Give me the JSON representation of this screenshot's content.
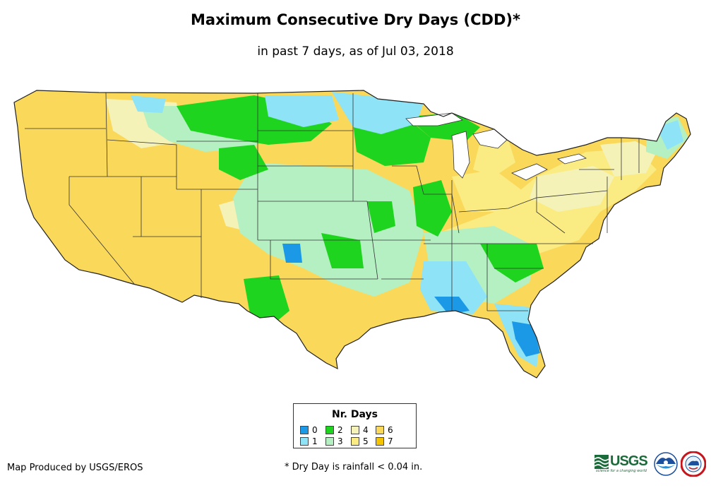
{
  "map": {
    "title": "Maximum Consecutive Dry Days (CDD)*",
    "subtitle": "in past 7 days, as of Jul 03, 2018"
  },
  "legend": {
    "title": "Nr. Days",
    "items": [
      {
        "label": "0",
        "color": "#1c99e6"
      },
      {
        "label": "1",
        "color": "#8ee3f7"
      },
      {
        "label": "2",
        "color": "#1fd41f"
      },
      {
        "label": "3",
        "color": "#b4f0c2"
      },
      {
        "label": "4",
        "color": "#f5f2b8"
      },
      {
        "label": "5",
        "color": "#faeb82"
      },
      {
        "label": "6",
        "color": "#fad85a"
      },
      {
        "label": "7",
        "color": "#f5c400"
      }
    ]
  },
  "footer": {
    "credit": "Map Produced by USGS/EROS",
    "footnote": "* Dry Day is rainfall < 0.04 in.",
    "logos": {
      "usgs": "USGS",
      "usgs_tagline": "science for a changing world",
      "noaa": "NOAA",
      "nws": "National Weather Service"
    }
  }
}
